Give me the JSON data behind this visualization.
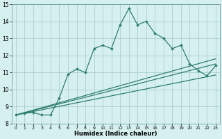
{
  "xlabel": "Humidex (Indice chaleur)",
  "xlim": [
    -0.5,
    23.5
  ],
  "ylim": [
    8,
    15
  ],
  "yticks": [
    8,
    9,
    10,
    11,
    12,
    13,
    14,
    15
  ],
  "xticks": [
    0,
    1,
    2,
    3,
    4,
    5,
    6,
    7,
    8,
    9,
    10,
    11,
    12,
    13,
    14,
    15,
    16,
    17,
    18,
    19,
    20,
    21,
    22,
    23
  ],
  "bg_color": "#d6f0f0",
  "grid_color": "#a0c8c8",
  "line_color": "#2e7d6e",
  "line1_x": [
    0,
    1,
    2,
    3,
    4,
    5,
    6,
    7,
    8,
    9,
    10,
    11,
    12,
    13,
    14,
    15,
    16,
    17,
    18,
    19,
    20,
    21,
    22,
    23
  ],
  "line1_y": [
    8.5,
    8.6,
    8.65,
    8.5,
    8.5,
    9.5,
    10.9,
    11.2,
    11.0,
    12.4,
    12.6,
    12.4,
    13.8,
    14.75,
    13.8,
    14.0,
    13.3,
    13.0,
    12.4,
    12.6,
    11.5,
    11.1,
    10.8,
    11.4
  ],
  "line2_x": [
    0,
    23
  ],
  "line2_y": [
    8.5,
    11.5
  ],
  "line3_x": [
    0,
    23
  ],
  "line3_y": [
    8.5,
    11.8
  ],
  "line4_x": [
    0,
    23
  ],
  "line4_y": [
    8.5,
    10.85
  ]
}
